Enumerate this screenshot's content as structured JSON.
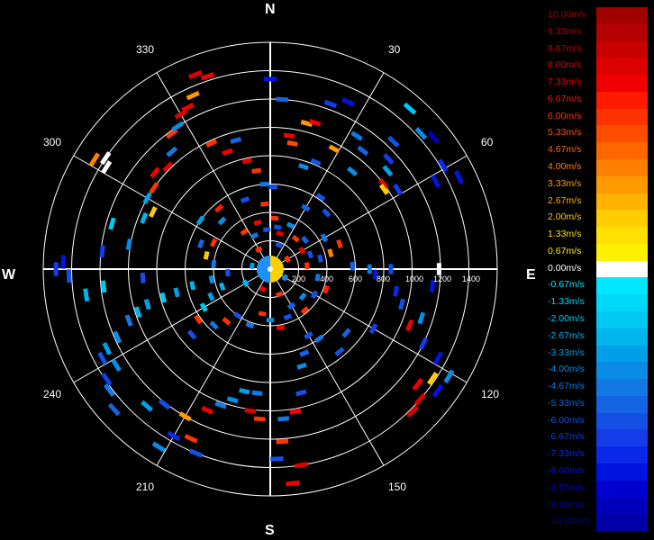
{
  "chart_data": {
    "type": "polar-scatter",
    "cardinals": {
      "n": "N",
      "e": "E",
      "s": "S",
      "w": "W"
    },
    "bearing_labels": [
      "30",
      "60",
      "120",
      "150",
      "210",
      "240",
      "300",
      "330"
    ],
    "bearings_deg": [
      30,
      60,
      120,
      150,
      210,
      240,
      300,
      330
    ],
    "radial_ticks": [
      "200",
      "400",
      "600",
      "800",
      "1000",
      "1200",
      "1400"
    ],
    "radial_values": [
      200,
      400,
      600,
      800,
      1000,
      1200,
      1400
    ],
    "radial_max": 1600,
    "spokes_deg": [
      0,
      30,
      60,
      90,
      120,
      150,
      180,
      210,
      240,
      270,
      300,
      330
    ],
    "legend": {
      "labels": [
        "10.00m/s",
        "9.33m/s",
        "8.67m/s",
        "8.00m/s",
        "7.33m/s",
        "6.67m/s",
        "6.00m/s",
        "5.33m/s",
        "4.67m/s",
        "4.00m/s",
        "3.33m/s",
        "2.67m/s",
        "2.00m/s",
        "1.33m/s",
        "0.67m/s",
        "0.00m/s",
        "-0.67m/s",
        "-1.33m/s",
        "-2.00m/s",
        "-2.67m/s",
        "-3.33m/s",
        "-4.00m/s",
        "-4.67m/s",
        "-5.33m/s",
        "-6.00m/s",
        "-6.67m/s",
        "-7.33m/s",
        "-8.00m/s",
        "-8.67m/s",
        "-9.33m/s",
        "-10.00m/s"
      ],
      "colors": [
        "#a00000",
        "#b40000",
        "#c80000",
        "#dc0000",
        "#f00000",
        "#ff1a00",
        "#ff3300",
        "#ff4d00",
        "#ff6600",
        "#ff8000",
        "#ff9900",
        "#ffb300",
        "#ffcc00",
        "#ffe000",
        "#fff000",
        "#ffffff",
        "#00e8ff",
        "#00d8f8",
        "#00c8f0",
        "#00b4ec",
        "#00a0e8",
        "#0a8ce6",
        "#1478e4",
        "#1464e4",
        "#1450e6",
        "#143ce8",
        "#0a28e8",
        "#0014e0",
        "#0000d0",
        "#0000bc",
        "#0000a8"
      ],
      "label_colors": [
        "#a00000",
        "#b40000",
        "#c80000",
        "#dc0000",
        "#f00000",
        "#ff1a00",
        "#ff3300",
        "#ff4d00",
        "#ff6600",
        "#ff8000",
        "#ff9900",
        "#ffb300",
        "#ffcc00",
        "#ffe000",
        "#fff000",
        "#ffffff",
        "#00e8ff",
        "#00d8f8",
        "#00c8f0",
        "#00b4ec",
        "#00a0e8",
        "#0a8ce6",
        "#1478e4",
        "#1464e4",
        "#1450e6",
        "#143ce8",
        "#0a28e8",
        "#0014e0",
        "#0000d0",
        "#0000bc",
        "#0000a8"
      ]
    },
    "points": [
      {
        "az": 0,
        "r": 1340,
        "v": -8.0
      },
      {
        "az": 4,
        "r": 1200,
        "v": -5.3
      },
      {
        "az": 8,
        "r": 950,
        "v": 7.3
      },
      {
        "az": 10,
        "r": 900,
        "v": 5.3
      },
      {
        "az": 14,
        "r": 1060,
        "v": 3.3
      },
      {
        "az": 17,
        "r": 1080,
        "v": 7.3
      },
      {
        "az": 20,
        "r": 1240,
        "v": -6.7
      },
      {
        "az": 25,
        "r": 1300,
        "v": -8.0
      },
      {
        "az": 18,
        "r": 760,
        "v": -4.0
      },
      {
        "az": 23,
        "r": 820,
        "v": -6.0
      },
      {
        "az": 28,
        "r": 960,
        "v": 3.3
      },
      {
        "az": 33,
        "r": 1120,
        "v": -4.7
      },
      {
        "az": 38,
        "r": 1060,
        "v": -5.3
      },
      {
        "az": 40,
        "r": 900,
        "v": -4.0
      },
      {
        "az": 44,
        "r": 1250,
        "v": -6.0
      },
      {
        "az": 47,
        "r": 1140,
        "v": -6.7
      },
      {
        "az": 50,
        "r": 1080,
        "v": -3.3
      },
      {
        "az": 53,
        "r": 1000,
        "v": 7.3
      },
      {
        "az": 55,
        "r": 980,
        "v": 2.0
      },
      {
        "az": 58,
        "r": 1060,
        "v": -6.7
      },
      {
        "az": 62,
        "r": 1320,
        "v": -8.0
      },
      {
        "az": 48,
        "r": 1430,
        "v": -4.0
      },
      {
        "az": 51,
        "r": 1480,
        "v": -9.3
      },
      {
        "az": 59,
        "r": 1420,
        "v": -7.3
      },
      {
        "az": 64,
        "r": 1480,
        "v": -8.0
      },
      {
        "az": 41,
        "r": 1500,
        "v": -2.0
      },
      {
        "az": 35,
        "r": 620,
        "v": -6.0
      },
      {
        "az": 30,
        "r": 500,
        "v": -5.3
      },
      {
        "az": 45,
        "r": 560,
        "v": -6.0
      },
      {
        "az": 60,
        "r": 440,
        "v": -4.7
      },
      {
        "az": 70,
        "r": 520,
        "v": 6.0
      },
      {
        "az": 75,
        "r": 440,
        "v": 4.0
      },
      {
        "az": 78,
        "r": 360,
        "v": -6.0
      },
      {
        "az": 88,
        "r": 580,
        "v": -5.3
      },
      {
        "az": 90,
        "r": 700,
        "v": -4.7
      },
      {
        "az": 90,
        "r": 850,
        "v": -6.0
      },
      {
        "az": 90,
        "r": 1190,
        "v": 0.0
      },
      {
        "az": 93,
        "r": 740,
        "v": -8.0
      },
      {
        "az": 96,
        "r": 1150,
        "v": -8.0
      },
      {
        "az": 100,
        "r": 900,
        "v": -7.3
      },
      {
        "az": 105,
        "r": 960,
        "v": -6.0
      },
      {
        "az": 108,
        "r": 1120,
        "v": -4.0
      },
      {
        "az": 112,
        "r": 1060,
        "v": 7.3
      },
      {
        "az": 116,
        "r": 1200,
        "v": -6.7
      },
      {
        "az": 118,
        "r": 1340,
        "v": -8.0
      },
      {
        "az": 121,
        "r": 1470,
        "v": -4.0
      },
      {
        "az": 124,
        "r": 1380,
        "v": 2.0
      },
      {
        "az": 126,
        "r": 1460,
        "v": -8.0
      },
      {
        "az": 128,
        "r": 1320,
        "v": 7.3
      },
      {
        "az": 131,
        "r": 1400,
        "v": 8.0
      },
      {
        "az": 135,
        "r": 1420,
        "v": 8.0
      },
      {
        "az": 120,
        "r": 840,
        "v": -6.7
      },
      {
        "az": 130,
        "r": 700,
        "v": -5.3
      },
      {
        "az": 140,
        "r": 760,
        "v": -6.0
      },
      {
        "az": 145,
        "r": 600,
        "v": -4.7
      },
      {
        "az": 150,
        "r": 540,
        "v": -6.0
      },
      {
        "az": 158,
        "r": 640,
        "v": -5.3
      },
      {
        "az": 162,
        "r": 720,
        "v": -4.0
      },
      {
        "az": 166,
        "r": 900,
        "v": -6.0
      },
      {
        "az": 170,
        "r": 1020,
        "v": 7.3
      },
      {
        "az": 175,
        "r": 1060,
        "v": -4.7
      },
      {
        "az": 176,
        "r": 1220,
        "v": 6.0
      },
      {
        "az": 178,
        "r": 1340,
        "v": -6.0
      },
      {
        "az": 171,
        "r": 1400,
        "v": 8.0
      },
      {
        "az": 174,
        "r": 1520,
        "v": 7.3
      },
      {
        "az": 184,
        "r": 1060,
        "v": 6.0
      },
      {
        "az": 188,
        "r": 1010,
        "v": 8.0
      },
      {
        "az": 186,
        "r": 880,
        "v": -4.7
      },
      {
        "az": 192,
        "r": 880,
        "v": -3.3
      },
      {
        "az": 196,
        "r": 960,
        "v": -4.0
      },
      {
        "az": 200,
        "r": 1020,
        "v": -4.7
      },
      {
        "az": 204,
        "r": 1090,
        "v": 7.3
      },
      {
        "az": 210,
        "r": 1200,
        "v": 3.3
      },
      {
        "az": 210,
        "r": 1360,
        "v": -7.3
      },
      {
        "az": 212,
        "r": 1480,
        "v": -4.0
      },
      {
        "az": 205,
        "r": 1320,
        "v": 6.0
      },
      {
        "az": 202,
        "r": 1400,
        "v": -6.0
      },
      {
        "az": 218,
        "r": 1210,
        "v": -6.0
      },
      {
        "az": 222,
        "r": 1300,
        "v": -3.3
      },
      {
        "az": 228,
        "r": 1480,
        "v": -5.3
      },
      {
        "az": 233,
        "r": 1420,
        "v": -4.7
      },
      {
        "az": 236,
        "r": 1390,
        "v": -6.7
      },
      {
        "az": 238,
        "r": 1280,
        "v": -4.0
      },
      {
        "az": 242,
        "r": 1340,
        "v": -6.0
      },
      {
        "az": 244,
        "r": 1280,
        "v": -3.3
      },
      {
        "az": 246,
        "r": 1180,
        "v": -4.0
      },
      {
        "az": 250,
        "r": 1060,
        "v": -4.7
      },
      {
        "az": 252,
        "r": 980,
        "v": -2.7
      },
      {
        "az": 254,
        "r": 900,
        "v": -3.3
      },
      {
        "az": 255,
        "r": 780,
        "v": -2.0
      },
      {
        "az": 256,
        "r": 680,
        "v": -3.3
      },
      {
        "az": 258,
        "r": 560,
        "v": -2.7
      },
      {
        "az": 260,
        "r": 420,
        "v": -4.0
      },
      {
        "az": 262,
        "r": 1310,
        "v": -2.7
      },
      {
        "az": 264,
        "r": 1180,
        "v": -2.0
      },
      {
        "az": 266,
        "r": 900,
        "v": -6.0
      },
      {
        "az": 268,
        "r": 1420,
        "v": -6.0
      },
      {
        "az": 270,
        "r": 1510,
        "v": -6.7
      },
      {
        "az": 272,
        "r": 1460,
        "v": -8.0
      },
      {
        "az": 276,
        "r": 1190,
        "v": -6.7
      },
      {
        "az": 280,
        "r": 1010,
        "v": -4.0
      },
      {
        "az": 286,
        "r": 1160,
        "v": -2.0
      },
      {
        "az": 292,
        "r": 960,
        "v": -2.7
      },
      {
        "az": 296,
        "r": 920,
        "v": 2.0
      },
      {
        "az": 300,
        "r": 1000,
        "v": -3.3
      },
      {
        "az": 302,
        "r": 1360,
        "v": 0.0
      },
      {
        "az": 304,
        "r": 1400,
        "v": 0.0
      },
      {
        "az": 302,
        "r": 1460,
        "v": 4.0
      },
      {
        "az": 305,
        "r": 1000,
        "v": 6.0
      },
      {
        "az": 310,
        "r": 1060,
        "v": 7.3
      },
      {
        "az": 315,
        "r": 1020,
        "v": 8.0
      },
      {
        "az": 320,
        "r": 1080,
        "v": -4.7
      },
      {
        "az": 324,
        "r": 1180,
        "v": 6.0
      },
      {
        "az": 327,
        "r": 1200,
        "v": -4.0
      },
      {
        "az": 330,
        "r": 1260,
        "v": 8.0
      },
      {
        "az": 333,
        "r": 1280,
        "v": 7.3
      },
      {
        "az": 336,
        "r": 1340,
        "v": 3.3
      },
      {
        "az": 339,
        "r": 1470,
        "v": 8.0
      },
      {
        "az": 342,
        "r": 1430,
        "v": 7.3
      },
      {
        "az": 335,
        "r": 980,
        "v": 6.0
      },
      {
        "az": 340,
        "r": 880,
        "v": 7.3
      },
      {
        "az": 345,
        "r": 940,
        "v": -5.3
      },
      {
        "az": 348,
        "r": 780,
        "v": 8.0
      },
      {
        "az": 352,
        "r": 700,
        "v": 6.0
      },
      {
        "az": 356,
        "r": 600,
        "v": -4.7
      },
      {
        "az": 2,
        "r": 580,
        "v": -6.0
      },
      {
        "az": 355,
        "r": 460,
        "v": 6.0
      },
      {
        "az": 340,
        "r": 520,
        "v": -6.0
      },
      {
        "az": 320,
        "r": 560,
        "v": 6.7
      },
      {
        "az": 315,
        "r": 480,
        "v": -4.0
      },
      {
        "az": 305,
        "r": 600,
        "v": -3.3
      },
      {
        "az": 295,
        "r": 440,
        "v": 6.0
      },
      {
        "az": 290,
        "r": 520,
        "v": -5.3
      },
      {
        "az": 282,
        "r": 460,
        "v": 2.0
      },
      {
        "az": 275,
        "r": 400,
        "v": -4.7
      },
      {
        "az": 265,
        "r": 300,
        "v": -6.0
      },
      {
        "az": 250,
        "r": 360,
        "v": -2.7
      },
      {
        "az": 245,
        "r": 460,
        "v": -3.3
      },
      {
        "az": 240,
        "r": 540,
        "v": -2.0
      },
      {
        "az": 235,
        "r": 620,
        "v": 6.0
      },
      {
        "az": 230,
        "r": 720,
        "v": -6.0
      },
      {
        "az": 225,
        "r": 560,
        "v": -4.7
      },
      {
        "az": 220,
        "r": 480,
        "v": 6.0
      },
      {
        "az": 215,
        "r": 400,
        "v": -6.0
      },
      {
        "az": 200,
        "r": 420,
        "v": -4.7
      },
      {
        "az": 190,
        "r": 320,
        "v": 6.0
      },
      {
        "az": 180,
        "r": 360,
        "v": -4.0
      },
      {
        "az": 170,
        "r": 420,
        "v": 7.3
      },
      {
        "az": 160,
        "r": 360,
        "v": -6.0
      },
      {
        "az": 150,
        "r": 300,
        "v": -5.3
      },
      {
        "az": 140,
        "r": 380,
        "v": 6.0
      },
      {
        "az": 130,
        "r": 300,
        "v": -4.0
      },
      {
        "az": 120,
        "r": 360,
        "v": -6.0
      },
      {
        "az": 110,
        "r": 420,
        "v": 6.7
      },
      {
        "az": 100,
        "r": 340,
        "v": -4.7
      },
      {
        "az": 85,
        "r": 260,
        "v": 6.0
      },
      {
        "az": 70,
        "r": 300,
        "v": -6.0
      },
      {
        "az": 60,
        "r": 260,
        "v": 7.3
      },
      {
        "az": 50,
        "r": 320,
        "v": -5.3
      },
      {
        "az": 40,
        "r": 280,
        "v": 6.0
      },
      {
        "az": 25,
        "r": 340,
        "v": -4.0
      },
      {
        "az": 15,
        "r": 260,
        "v": 8.0
      },
      {
        "az": 10,
        "r": 300,
        "v": -6.0
      },
      {
        "az": 5,
        "r": 360,
        "v": 6.0
      },
      {
        "az": 355,
        "r": 280,
        "v": -6.0
      },
      {
        "az": 345,
        "r": 340,
        "v": 7.3
      },
      {
        "az": 335,
        "r": 260,
        "v": -4.7
      },
      {
        "az": 325,
        "r": 320,
        "v": 6.0
      },
      {
        "az": 60,
        "r": 140,
        "v": 6.0
      },
      {
        "az": 120,
        "r": 120,
        "v": -4.0
      },
      {
        "az": 200,
        "r": 150,
        "v": 7.3
      },
      {
        "az": 280,
        "r": 130,
        "v": -3.3
      },
      {
        "az": 330,
        "r": 160,
        "v": 6.0
      },
      {
        "az": 20,
        "r": 180,
        "v": -6.0
      },
      {
        "az": 240,
        "r": 200,
        "v": -2.7
      },
      {
        "az": 160,
        "r": 190,
        "v": 6.0
      }
    ]
  }
}
